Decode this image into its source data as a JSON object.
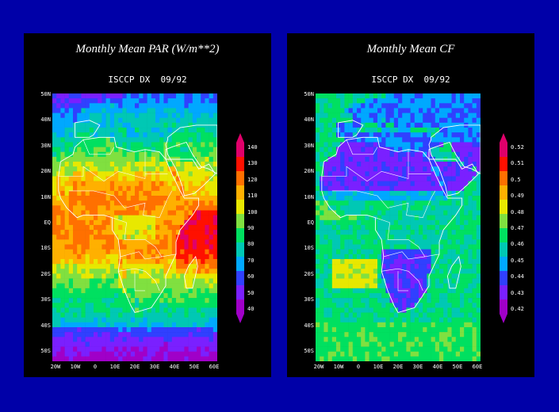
{
  "colors": {
    "background": "#0000a8",
    "panel": "#000000",
    "text": "#ffffff",
    "boundary": "#ffffff",
    "colorscale": [
      "#a000c8",
      "#7a20ff",
      "#3040ff",
      "#00a8ff",
      "#00c8b4",
      "#00e060",
      "#80e040",
      "#e8e800",
      "#ffb000",
      "#ff7000",
      "#ff1000",
      "#e0006a"
    ]
  },
  "panels": [
    {
      "id": "par",
      "title": "Monthly Mean PAR (W/m**2)",
      "subtitle": "ISCCP DX  09/92",
      "y_ticks": [
        "50N",
        "40N",
        "30N",
        "20N",
        "10N",
        "EQ",
        "10S",
        "20S",
        "30S",
        "40S",
        "50S"
      ],
      "x_ticks": [
        "20W",
        "10W",
        "0",
        "10E",
        "20E",
        "30E",
        "40E",
        "50E",
        "60E"
      ],
      "colorbar_labels": [
        "140",
        "130",
        "120",
        "110",
        "100",
        "90",
        "80",
        "70",
        "60",
        "50",
        "40"
      ],
      "field": "par"
    },
    {
      "id": "cf",
      "title": "Monthly Mean CF",
      "subtitle": "ISCCP DX  09/92",
      "y_ticks": [
        "50N",
        "40N",
        "30N",
        "20N",
        "10N",
        "EQ",
        "10S",
        "20S",
        "30S",
        "40S",
        "50S"
      ],
      "x_ticks": [
        "20W",
        "10W",
        "0",
        "10E",
        "20E",
        "30E",
        "40E",
        "50E",
        "60E"
      ],
      "colorbar_labels": [
        "0.52",
        "0.51",
        "0.5",
        "0.49",
        "0.48",
        "0.47",
        "0.46",
        "0.45",
        "0.44",
        "0.43",
        "0.42"
      ],
      "field": "cf"
    }
  ]
}
